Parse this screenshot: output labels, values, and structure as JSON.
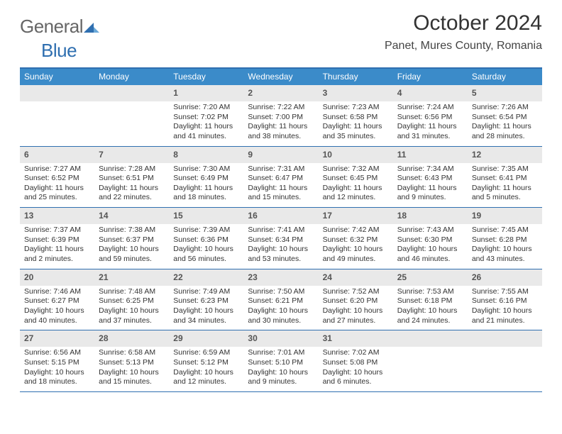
{
  "brand": {
    "part1": "General",
    "part2": "Blue"
  },
  "title": "October 2024",
  "location": "Panet, Mures County, Romania",
  "colors": {
    "header_bg": "#3b8bc9",
    "accent": "#2f6fb0",
    "daynum_bg": "#e9e9e9",
    "text": "#333333",
    "background": "#ffffff"
  },
  "day_names": [
    "Sunday",
    "Monday",
    "Tuesday",
    "Wednesday",
    "Thursday",
    "Friday",
    "Saturday"
  ],
  "weeks": [
    [
      {
        "n": "",
        "sr": "",
        "ss": "",
        "dl": ""
      },
      {
        "n": "",
        "sr": "",
        "ss": "",
        "dl": ""
      },
      {
        "n": "1",
        "sr": "Sunrise: 7:20 AM",
        "ss": "Sunset: 7:02 PM",
        "dl": "Daylight: 11 hours and 41 minutes."
      },
      {
        "n": "2",
        "sr": "Sunrise: 7:22 AM",
        "ss": "Sunset: 7:00 PM",
        "dl": "Daylight: 11 hours and 38 minutes."
      },
      {
        "n": "3",
        "sr": "Sunrise: 7:23 AM",
        "ss": "Sunset: 6:58 PM",
        "dl": "Daylight: 11 hours and 35 minutes."
      },
      {
        "n": "4",
        "sr": "Sunrise: 7:24 AM",
        "ss": "Sunset: 6:56 PM",
        "dl": "Daylight: 11 hours and 31 minutes."
      },
      {
        "n": "5",
        "sr": "Sunrise: 7:26 AM",
        "ss": "Sunset: 6:54 PM",
        "dl": "Daylight: 11 hours and 28 minutes."
      }
    ],
    [
      {
        "n": "6",
        "sr": "Sunrise: 7:27 AM",
        "ss": "Sunset: 6:52 PM",
        "dl": "Daylight: 11 hours and 25 minutes."
      },
      {
        "n": "7",
        "sr": "Sunrise: 7:28 AM",
        "ss": "Sunset: 6:51 PM",
        "dl": "Daylight: 11 hours and 22 minutes."
      },
      {
        "n": "8",
        "sr": "Sunrise: 7:30 AM",
        "ss": "Sunset: 6:49 PM",
        "dl": "Daylight: 11 hours and 18 minutes."
      },
      {
        "n": "9",
        "sr": "Sunrise: 7:31 AM",
        "ss": "Sunset: 6:47 PM",
        "dl": "Daylight: 11 hours and 15 minutes."
      },
      {
        "n": "10",
        "sr": "Sunrise: 7:32 AM",
        "ss": "Sunset: 6:45 PM",
        "dl": "Daylight: 11 hours and 12 minutes."
      },
      {
        "n": "11",
        "sr": "Sunrise: 7:34 AM",
        "ss": "Sunset: 6:43 PM",
        "dl": "Daylight: 11 hours and 9 minutes."
      },
      {
        "n": "12",
        "sr": "Sunrise: 7:35 AM",
        "ss": "Sunset: 6:41 PM",
        "dl": "Daylight: 11 hours and 5 minutes."
      }
    ],
    [
      {
        "n": "13",
        "sr": "Sunrise: 7:37 AM",
        "ss": "Sunset: 6:39 PM",
        "dl": "Daylight: 11 hours and 2 minutes."
      },
      {
        "n": "14",
        "sr": "Sunrise: 7:38 AM",
        "ss": "Sunset: 6:37 PM",
        "dl": "Daylight: 10 hours and 59 minutes."
      },
      {
        "n": "15",
        "sr": "Sunrise: 7:39 AM",
        "ss": "Sunset: 6:36 PM",
        "dl": "Daylight: 10 hours and 56 minutes."
      },
      {
        "n": "16",
        "sr": "Sunrise: 7:41 AM",
        "ss": "Sunset: 6:34 PM",
        "dl": "Daylight: 10 hours and 53 minutes."
      },
      {
        "n": "17",
        "sr": "Sunrise: 7:42 AM",
        "ss": "Sunset: 6:32 PM",
        "dl": "Daylight: 10 hours and 49 minutes."
      },
      {
        "n": "18",
        "sr": "Sunrise: 7:43 AM",
        "ss": "Sunset: 6:30 PM",
        "dl": "Daylight: 10 hours and 46 minutes."
      },
      {
        "n": "19",
        "sr": "Sunrise: 7:45 AM",
        "ss": "Sunset: 6:28 PM",
        "dl": "Daylight: 10 hours and 43 minutes."
      }
    ],
    [
      {
        "n": "20",
        "sr": "Sunrise: 7:46 AM",
        "ss": "Sunset: 6:27 PM",
        "dl": "Daylight: 10 hours and 40 minutes."
      },
      {
        "n": "21",
        "sr": "Sunrise: 7:48 AM",
        "ss": "Sunset: 6:25 PM",
        "dl": "Daylight: 10 hours and 37 minutes."
      },
      {
        "n": "22",
        "sr": "Sunrise: 7:49 AM",
        "ss": "Sunset: 6:23 PM",
        "dl": "Daylight: 10 hours and 34 minutes."
      },
      {
        "n": "23",
        "sr": "Sunrise: 7:50 AM",
        "ss": "Sunset: 6:21 PM",
        "dl": "Daylight: 10 hours and 30 minutes."
      },
      {
        "n": "24",
        "sr": "Sunrise: 7:52 AM",
        "ss": "Sunset: 6:20 PM",
        "dl": "Daylight: 10 hours and 27 minutes."
      },
      {
        "n": "25",
        "sr": "Sunrise: 7:53 AM",
        "ss": "Sunset: 6:18 PM",
        "dl": "Daylight: 10 hours and 24 minutes."
      },
      {
        "n": "26",
        "sr": "Sunrise: 7:55 AM",
        "ss": "Sunset: 6:16 PM",
        "dl": "Daylight: 10 hours and 21 minutes."
      }
    ],
    [
      {
        "n": "27",
        "sr": "Sunrise: 6:56 AM",
        "ss": "Sunset: 5:15 PM",
        "dl": "Daylight: 10 hours and 18 minutes."
      },
      {
        "n": "28",
        "sr": "Sunrise: 6:58 AM",
        "ss": "Sunset: 5:13 PM",
        "dl": "Daylight: 10 hours and 15 minutes."
      },
      {
        "n": "29",
        "sr": "Sunrise: 6:59 AM",
        "ss": "Sunset: 5:12 PM",
        "dl": "Daylight: 10 hours and 12 minutes."
      },
      {
        "n": "30",
        "sr": "Sunrise: 7:01 AM",
        "ss": "Sunset: 5:10 PM",
        "dl": "Daylight: 10 hours and 9 minutes."
      },
      {
        "n": "31",
        "sr": "Sunrise: 7:02 AM",
        "ss": "Sunset: 5:08 PM",
        "dl": "Daylight: 10 hours and 6 minutes."
      },
      {
        "n": "",
        "sr": "",
        "ss": "",
        "dl": ""
      },
      {
        "n": "",
        "sr": "",
        "ss": "",
        "dl": ""
      }
    ]
  ]
}
